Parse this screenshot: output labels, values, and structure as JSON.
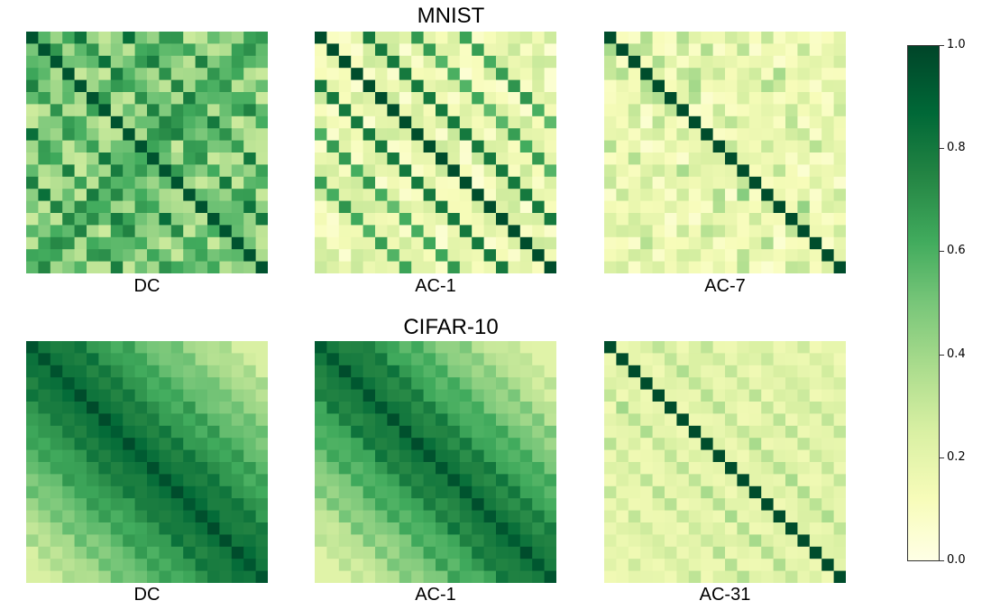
{
  "titles": {
    "top": "MNIST",
    "bottom": "CIFAR-10"
  },
  "chart_data": [
    {
      "type": "heatmap",
      "group": "MNIST",
      "label": "DC",
      "size": 20,
      "pattern": "dc_mnist",
      "zlim": [
        0,
        1
      ]
    },
    {
      "type": "heatmap",
      "group": "MNIST",
      "label": "AC-1",
      "size": 20,
      "pattern": "ac1_mnist",
      "zlim": [
        0,
        1
      ]
    },
    {
      "type": "heatmap",
      "group": "MNIST",
      "label": "AC-7",
      "size": 20,
      "pattern": "ac7_mnist",
      "zlim": [
        0,
        1
      ]
    },
    {
      "type": "heatmap",
      "group": "CIFAR-10",
      "label": "DC",
      "size": 20,
      "pattern": "dc_cifar",
      "zlim": [
        0,
        1
      ]
    },
    {
      "type": "heatmap",
      "group": "CIFAR-10",
      "label": "AC-1",
      "size": 20,
      "pattern": "ac1_cifar",
      "zlim": [
        0,
        1
      ]
    },
    {
      "type": "heatmap",
      "group": "CIFAR-10",
      "label": "AC-31",
      "size": 20,
      "pattern": "ac31_cifar",
      "zlim": [
        0,
        1
      ]
    }
  ],
  "colorbar": {
    "ticks": [
      "0.0",
      "0.2",
      "0.4",
      "0.6",
      "0.8",
      "1.0"
    ],
    "colormap": "YlGn",
    "colors": [
      "#ffffe5",
      "#f7fcb9",
      "#d9f0a3",
      "#addd8e",
      "#78c679",
      "#41ab5d",
      "#238443",
      "#006837",
      "#004529"
    ]
  }
}
